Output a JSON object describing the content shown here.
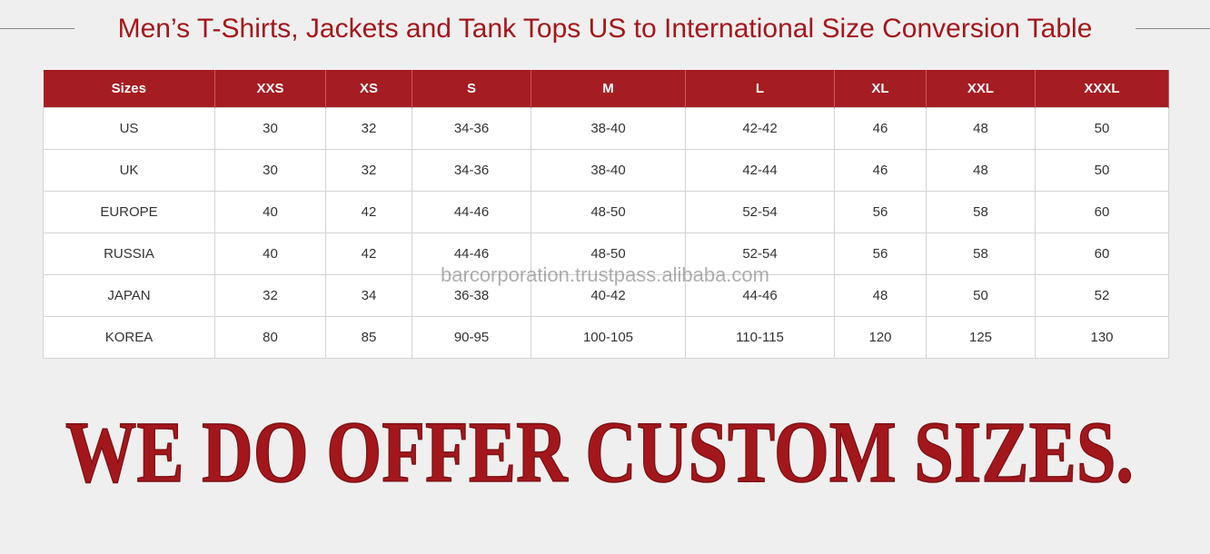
{
  "header": {
    "title": "Men’s T-Shirts, Jackets and Tank Tops US to International Size Conversion Table"
  },
  "table": {
    "columns": [
      "Sizes",
      "XXS",
      "XS",
      "S",
      "M",
      "L",
      "XL",
      "XXL",
      "XXXL"
    ],
    "rows": [
      [
        "US",
        "30",
        "32",
        "34-36",
        "38-40",
        "42-42",
        "46",
        "48",
        "50"
      ],
      [
        "UK",
        "30",
        "32",
        "34-36",
        "38-40",
        "42-44",
        "46",
        "48",
        "50"
      ],
      [
        "EUROPE",
        "40",
        "42",
        "44-46",
        "48-50",
        "52-54",
        "56",
        "58",
        "60"
      ],
      [
        "RUSSIA",
        "40",
        "42",
        "44-46",
        "48-50",
        "52-54",
        "56",
        "58",
        "60"
      ],
      [
        "JAPAN",
        "32",
        "34",
        "36-38",
        "40-42",
        "44-46",
        "48",
        "50",
        "52"
      ],
      [
        "KOREA",
        "80",
        "85",
        "90-95",
        "100-105",
        "110-115",
        "120",
        "125",
        "130"
      ]
    ]
  },
  "watermark": "barcorporation.trustpass.alibaba.com",
  "banner": "WE DO OFFER CUSTOM SIZES."
}
